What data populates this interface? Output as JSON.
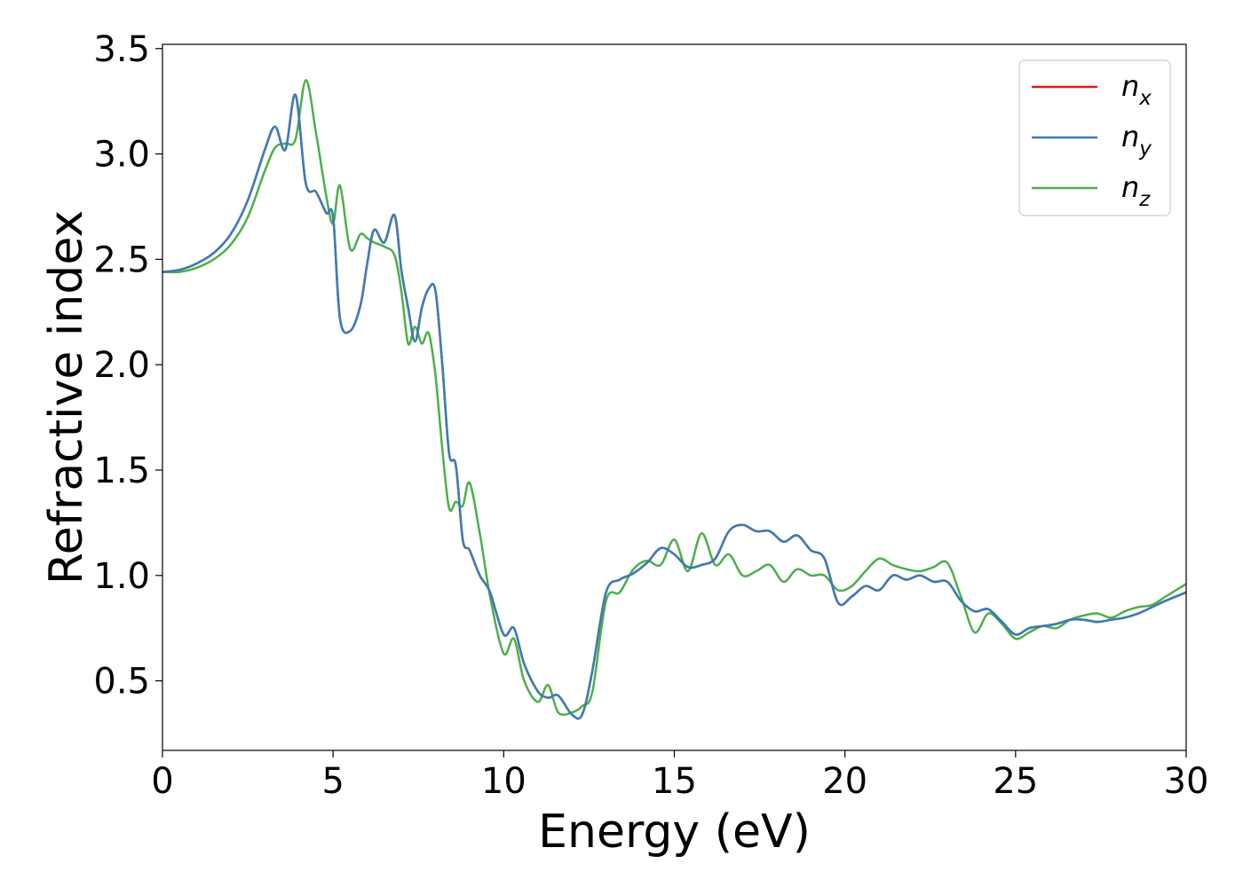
{
  "chart_data": {
    "type": "line",
    "xlabel": "Energy (eV)",
    "ylabel": "Refractive index",
    "xlim": [
      0,
      30
    ],
    "ylim": [
      0.17,
      3.52
    ],
    "xticks": [
      0,
      5,
      10,
      15,
      20,
      25,
      30
    ],
    "yticks": [
      0.5,
      1.0,
      1.5,
      2.0,
      2.5,
      3.0,
      3.5
    ],
    "grid": false,
    "legend_position": "top-right",
    "x": [
      0,
      0.5,
      1,
      1.5,
      2,
      2.5,
      3,
      3.3,
      3.6,
      3.9,
      4.2,
      4.5,
      4.8,
      5.0,
      5.2,
      5.5,
      5.8,
      6.0,
      6.2,
      6.5,
      6.8,
      7.0,
      7.2,
      7.4,
      7.6,
      7.8,
      8.0,
      8.2,
      8.4,
      8.6,
      8.8,
      9.0,
      9.3,
      9.6,
      10.0,
      10.3,
      10.6,
      11.0,
      11.3,
      11.6,
      12.0,
      12.3,
      12.6,
      13.0,
      13.4,
      13.8,
      14.2,
      14.6,
      15.0,
      15.4,
      15.8,
      16.2,
      16.6,
      17.0,
      17.4,
      17.8,
      18.2,
      18.6,
      19.0,
      19.4,
      19.8,
      20.2,
      20.6,
      21.0,
      21.4,
      21.8,
      22.2,
      22.6,
      23.0,
      23.4,
      23.8,
      24.2,
      24.6,
      25.0,
      25.4,
      25.8,
      26.2,
      26.6,
      27.0,
      27.4,
      27.8,
      28.2,
      28.6,
      29.0,
      29.4,
      30.0
    ],
    "series": [
      {
        "name": "n_x",
        "label_base": "n",
        "label_sub": "x",
        "color": "#e41a1c",
        "values": [
          2.44,
          2.45,
          2.48,
          2.53,
          2.62,
          2.78,
          3.02,
          3.13,
          3.02,
          3.28,
          2.86,
          2.82,
          2.72,
          2.7,
          2.22,
          2.16,
          2.28,
          2.48,
          2.64,
          2.58,
          2.71,
          2.45,
          2.27,
          2.11,
          2.27,
          2.36,
          2.35,
          2.0,
          1.58,
          1.52,
          1.17,
          1.12,
          1.0,
          0.92,
          0.72,
          0.75,
          0.58,
          0.45,
          0.42,
          0.43,
          0.34,
          0.34,
          0.55,
          0.92,
          0.98,
          1.01,
          1.06,
          1.13,
          1.1,
          1.04,
          1.05,
          1.08,
          1.21,
          1.24,
          1.21,
          1.21,
          1.16,
          1.19,
          1.12,
          1.08,
          0.87,
          0.9,
          0.95,
          0.93,
          1.0,
          0.98,
          1.0,
          0.97,
          0.97,
          0.88,
          0.83,
          0.84,
          0.78,
          0.72,
          0.75,
          0.76,
          0.77,
          0.79,
          0.79,
          0.78,
          0.79,
          0.8,
          0.82,
          0.85,
          0.88,
          0.92
        ]
      },
      {
        "name": "n_y",
        "label_base": "n",
        "label_sub": "y",
        "color": "#377eb8",
        "values": [
          2.44,
          2.45,
          2.48,
          2.53,
          2.62,
          2.78,
          3.02,
          3.13,
          3.02,
          3.28,
          2.86,
          2.82,
          2.72,
          2.7,
          2.22,
          2.16,
          2.28,
          2.48,
          2.64,
          2.58,
          2.71,
          2.45,
          2.27,
          2.11,
          2.27,
          2.36,
          2.35,
          2.0,
          1.58,
          1.52,
          1.17,
          1.12,
          1.0,
          0.92,
          0.72,
          0.75,
          0.58,
          0.45,
          0.42,
          0.43,
          0.34,
          0.34,
          0.55,
          0.92,
          0.98,
          1.01,
          1.06,
          1.13,
          1.1,
          1.04,
          1.05,
          1.08,
          1.21,
          1.24,
          1.21,
          1.21,
          1.16,
          1.19,
          1.12,
          1.08,
          0.87,
          0.9,
          0.95,
          0.93,
          1.0,
          0.98,
          1.0,
          0.97,
          0.97,
          0.88,
          0.83,
          0.84,
          0.78,
          0.72,
          0.75,
          0.76,
          0.77,
          0.79,
          0.79,
          0.78,
          0.79,
          0.8,
          0.82,
          0.85,
          0.88,
          0.92
        ]
      },
      {
        "name": "n_z",
        "label_base": "n",
        "label_sub": "z",
        "color": "#4daf4a",
        "values": [
          2.44,
          2.44,
          2.46,
          2.5,
          2.57,
          2.7,
          2.92,
          3.03,
          3.05,
          3.07,
          3.35,
          3.1,
          2.8,
          2.67,
          2.85,
          2.55,
          2.62,
          2.6,
          2.58,
          2.56,
          2.52,
          2.35,
          2.1,
          2.18,
          2.1,
          2.15,
          1.95,
          1.6,
          1.32,
          1.35,
          1.33,
          1.44,
          1.2,
          0.9,
          0.63,
          0.7,
          0.5,
          0.4,
          0.48,
          0.35,
          0.35,
          0.38,
          0.45,
          0.88,
          0.92,
          1.03,
          1.07,
          1.05,
          1.17,
          1.02,
          1.2,
          1.05,
          1.1,
          1.0,
          1.02,
          1.05,
          0.97,
          1.03,
          1.0,
          1.0,
          0.93,
          0.95,
          1.02,
          1.08,
          1.05,
          1.03,
          1.02,
          1.04,
          1.06,
          0.9,
          0.73,
          0.82,
          0.77,
          0.7,
          0.73,
          0.76,
          0.75,
          0.79,
          0.81,
          0.82,
          0.8,
          0.83,
          0.85,
          0.86,
          0.9,
          0.96
        ]
      }
    ]
  }
}
